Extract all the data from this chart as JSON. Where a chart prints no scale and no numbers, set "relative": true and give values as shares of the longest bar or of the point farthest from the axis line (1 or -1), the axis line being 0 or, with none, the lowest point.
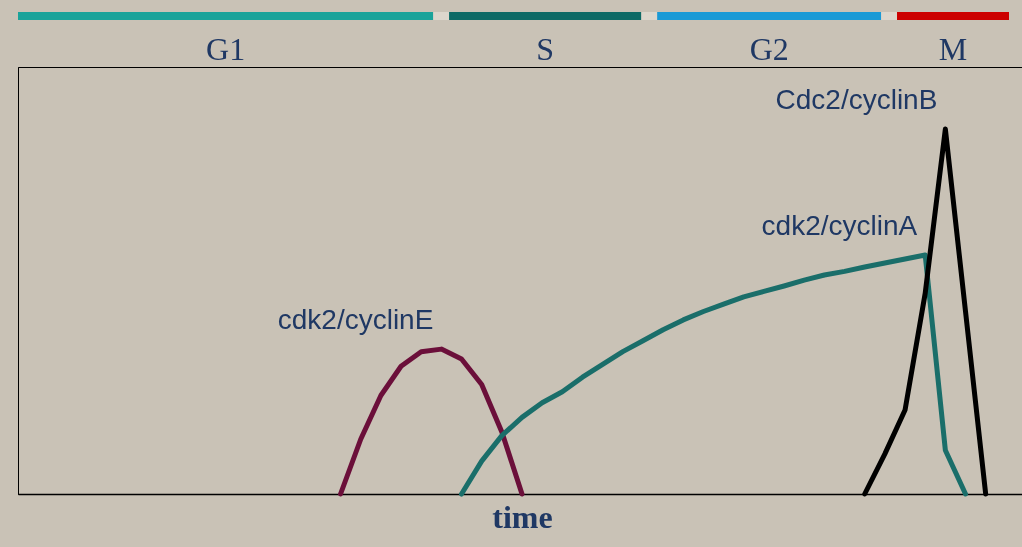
{
  "chart_data": [
    {
      "type": "bar",
      "orientation": "horizontal",
      "stacked": true,
      "relative": true,
      "categories": [
        null
      ],
      "series": [
        {
          "name": "G1",
          "color": "#1aa39a",
          "values": [
            0.419
          ]
        },
        {
          "color": "#dcd6cc",
          "values": [
            0.016
          ]
        },
        {
          "name": "S",
          "color": "#0d6a66",
          "values": [
            0.194
          ]
        },
        {
          "color": "#dcd6cc",
          "values": [
            0.016
          ]
        },
        {
          "name": "G2",
          "color": "#1a9ad6",
          "values": [
            0.226
          ]
        },
        {
          "color": "#dcd6cc",
          "values": [
            0.016
          ]
        },
        {
          "name": "M",
          "color": "#cc0000",
          "values": [
            0.113
          ]
        }
      ]
    },
    {
      "type": "line",
      "relative": true,
      "xlabel": "time",
      "categories": [
        null,
        null,
        null,
        null,
        null,
        null,
        null,
        null,
        null,
        null,
        null,
        null,
        null,
        null,
        null,
        null,
        null,
        null,
        null,
        null,
        null,
        null,
        null,
        null,
        null,
        null,
        null,
        null,
        null,
        null,
        null,
        null,
        null,
        null,
        null,
        null,
        null,
        null,
        null,
        null,
        null,
        null,
        null,
        null,
        null,
        null,
        null,
        null,
        null,
        null,
        null
      ],
      "series": [
        {
          "name": "cdk2/cyclinE",
          "color": "#6b0f3a",
          "values": [
            null,
            null,
            null,
            null,
            null,
            null,
            null,
            null,
            null,
            null,
            null,
            null,
            null,
            null,
            null,
            null,
            0,
            0.15,
            0.27,
            0.35,
            0.39,
            0.397,
            0.37,
            0.3,
            0.17,
            0,
            null,
            null,
            null,
            null,
            null,
            null,
            null,
            null,
            null,
            null,
            null,
            null,
            null,
            null,
            null,
            null,
            null,
            null,
            null,
            null,
            null,
            null,
            null,
            null,
            null
          ]
        },
        {
          "name": "cdk2/cyclinA",
          "color": "#1a6e6a",
          "values": [
            null,
            null,
            null,
            null,
            null,
            null,
            null,
            null,
            null,
            null,
            null,
            null,
            null,
            null,
            null,
            null,
            null,
            null,
            null,
            null,
            null,
            null,
            0,
            0.09,
            0.16,
            0.21,
            0.25,
            0.28,
            0.32,
            0.355,
            0.39,
            0.42,
            0.45,
            0.477,
            0.5,
            0.52,
            0.54,
            0.555,
            0.57,
            0.586,
            0.6,
            0.61,
            0.622,
            0.633,
            0.644,
            0.655,
            0.12,
            0,
            null,
            null,
            null
          ]
        },
        {
          "name": "Cdc2/cyclinB",
          "color": "#000000",
          "values": [
            null,
            null,
            null,
            null,
            null,
            null,
            null,
            null,
            null,
            null,
            null,
            null,
            null,
            null,
            null,
            null,
            null,
            null,
            null,
            null,
            null,
            null,
            null,
            null,
            null,
            null,
            null,
            null,
            null,
            null,
            null,
            null,
            null,
            null,
            null,
            null,
            null,
            null,
            null,
            null,
            null,
            null,
            0,
            0.11,
            0.23,
            0.55,
            1,
            0.5,
            0,
            null,
            null
          ]
        }
      ]
    }
  ]
}
